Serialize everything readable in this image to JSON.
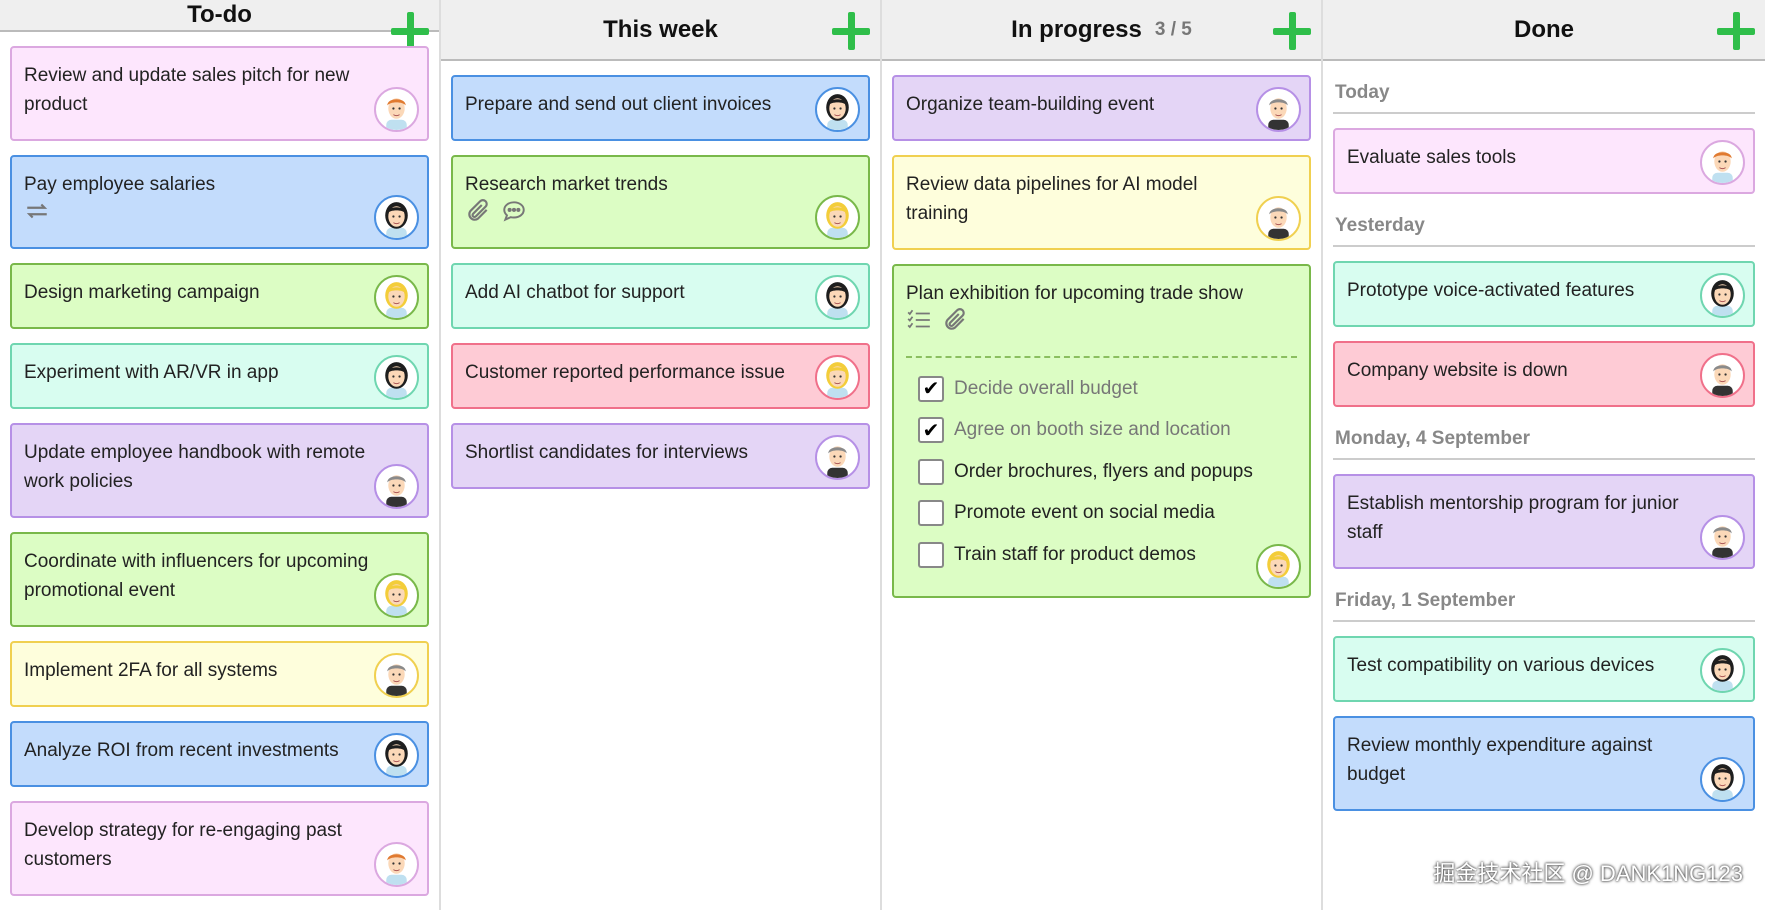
{
  "colors": {
    "pink": {
      "bg": "#fde6fd",
      "border": "#dba8e0"
    },
    "blue": {
      "bg": "#c3dcfc",
      "border": "#4a90e2"
    },
    "green": {
      "bg": "#dcfdc4",
      "border": "#79b84a"
    },
    "teal": {
      "bg": "#d8fdf0",
      "border": "#6fd6b0"
    },
    "lavender": {
      "bg": "#e4d5f6",
      "border": "#b690e6"
    },
    "yellow": {
      "bg": "#fefedc",
      "border": "#f0d050"
    },
    "red": {
      "bg": "#fecbd5",
      "border": "#f0708a"
    },
    "add": "#2fbe4a"
  },
  "columns": [
    {
      "title": "To-do",
      "count": "",
      "groups": [
        {
          "label": "",
          "cards": [
            {
              "title": "Review and update sales pitch for new product",
              "color": "pink",
              "avatar": "redhead-man"
            },
            {
              "title": "Pay employee salaries",
              "color": "blue",
              "avatar": "dark-haired-woman",
              "icons": [
                "repeat-icon"
              ]
            },
            {
              "title": "Design marketing campaign",
              "color": "green",
              "avatar": "blonde-woman"
            },
            {
              "title": "Experiment with AR/VR in app",
              "color": "teal",
              "avatar": "dark-haired-woman"
            },
            {
              "title": "Update employee handbook with remote work policies",
              "color": "lavender",
              "avatar": "gray-haired-man"
            },
            {
              "title": "Coordinate with influencers for upcoming promotional event",
              "color": "green",
              "avatar": "blonde-woman"
            },
            {
              "title": "Implement 2FA for all systems",
              "color": "yellow",
              "avatar": "gray-haired-man"
            },
            {
              "title": "Analyze ROI from recent investments",
              "color": "blue",
              "avatar": "dark-haired-woman"
            },
            {
              "title": "Develop strategy for re-engaging past customers",
              "color": "pink",
              "avatar": "redhead-man"
            }
          ]
        }
      ]
    },
    {
      "title": "This week",
      "count": "",
      "groups": [
        {
          "label": "",
          "cards": [
            {
              "title": "Prepare and send out client invoices",
              "color": "blue",
              "avatar": "dark-haired-woman"
            },
            {
              "title": "Research market trends",
              "color": "green",
              "avatar": "blonde-woman",
              "icons": [
                "paperclip-icon",
                "comment-icon"
              ]
            },
            {
              "title": "Add AI chatbot for support",
              "color": "teal",
              "avatar": "dark-haired-woman"
            },
            {
              "title": "Customer reported performance issue",
              "color": "red",
              "avatar": "blonde-woman"
            },
            {
              "title": "Shortlist candidates for interviews",
              "color": "lavender",
              "avatar": "gray-haired-man"
            }
          ]
        }
      ]
    },
    {
      "title": "In progress",
      "count": "3 / 5",
      "groups": [
        {
          "label": "",
          "cards": [
            {
              "title": "Organize team-building event",
              "color": "lavender",
              "avatar": "gray-haired-man"
            },
            {
              "title": "Review data pipelines for AI model training",
              "color": "yellow",
              "avatar": "gray-haired-man"
            },
            {
              "title": "Plan exhibition for upcoming trade show",
              "color": "green",
              "avatar": "blonde-woman",
              "icons": [
                "checklist-icon",
                "paperclip-icon"
              ],
              "checklist": [
                {
                  "label": "Decide overall budget",
                  "checked": true
                },
                {
                  "label": "Agree on booth size and location",
                  "checked": true
                },
                {
                  "label": "Order brochures, flyers and popups",
                  "checked": false
                },
                {
                  "label": "Promote event on social media",
                  "checked": false
                },
                {
                  "label": "Train staff for product demos",
                  "checked": false
                }
              ]
            }
          ]
        }
      ]
    },
    {
      "title": "Done",
      "count": "",
      "groups": [
        {
          "label": "Today",
          "cards": [
            {
              "title": "Evaluate sales tools",
              "color": "pink",
              "avatar": "redhead-man"
            }
          ]
        },
        {
          "label": "Yesterday",
          "cards": [
            {
              "title": "Prototype voice-activated features",
              "color": "teal",
              "avatar": "dark-haired-woman"
            },
            {
              "title": "Company website is down",
              "color": "red",
              "avatar": "gray-haired-man"
            }
          ]
        },
        {
          "label": "Monday, 4 September",
          "cards": [
            {
              "title": "Establish mentorship program for junior staff",
              "color": "lavender",
              "avatar": "gray-haired-man"
            }
          ]
        },
        {
          "label": "Friday, 1 September",
          "cards": [
            {
              "title": "Test compatibility on various devices",
              "color": "teal",
              "avatar": "dark-haired-woman"
            },
            {
              "title": "Review monthly expenditure against budget",
              "color": "blue",
              "avatar": "dark-haired-woman"
            }
          ]
        }
      ]
    }
  ],
  "watermark": "掘金技术社区 @ DANK1NG123"
}
